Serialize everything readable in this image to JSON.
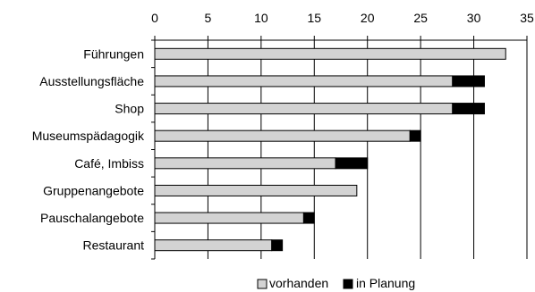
{
  "chart_data": {
    "type": "bar",
    "orientation": "horizontal",
    "stacked": true,
    "categories": [
      "Führungen",
      "Ausstellungsfläche",
      "Shop",
      "Museumspädagogik",
      "Café, Imbiss",
      "Gruppenangebote",
      "Pauschalangebote",
      "Restaurant"
    ],
    "series": [
      {
        "name": "vorhanden",
        "values": [
          33,
          28,
          28,
          24,
          17,
          19,
          14,
          11
        ],
        "color": "#d3d3d3"
      },
      {
        "name": "in Planung",
        "values": [
          0,
          3,
          3,
          1,
          3,
          0,
          1,
          1
        ],
        "color": "#000000"
      }
    ],
    "x_ticks": [
      "0",
      "5",
      "10",
      "15",
      "20",
      "25",
      "30",
      "35"
    ],
    "xlim": [
      0,
      35
    ],
    "x_axis_position": "top",
    "grid": "vertical",
    "legend_position": "bottom",
    "title": "",
    "xlabel": "",
    "ylabel": ""
  }
}
